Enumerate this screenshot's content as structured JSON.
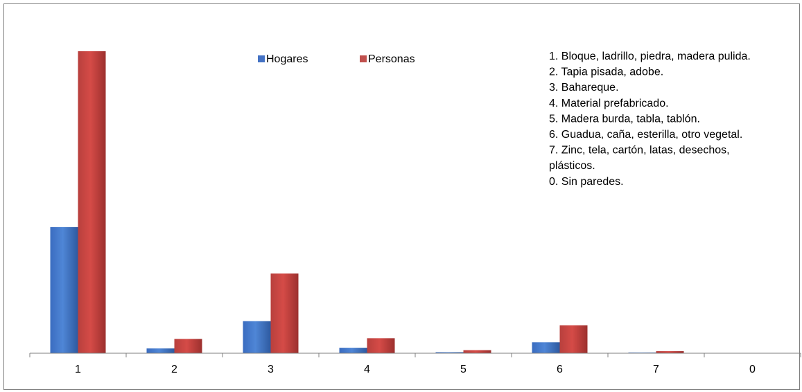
{
  "chart_data": {
    "type": "bar",
    "title": "",
    "xlabel": "",
    "ylabel": "",
    "categories": [
      "1",
      "2",
      "3",
      "4",
      "5",
      "6",
      "7",
      "0"
    ],
    "series": [
      {
        "name": "Hogares",
        "color": "#4472c4",
        "values": [
          185,
          7,
          47,
          8,
          1.5,
          16,
          1,
          0
        ]
      },
      {
        "name": "Personas",
        "color": "#c0504d",
        "values": [
          443,
          21,
          117,
          22,
          4.5,
          41,
          3,
          0
        ]
      }
    ],
    "ylim": [
      0,
      450
    ],
    "grid": false,
    "legend": "top-center",
    "notes": [
      "1. Bloque, ladrillo, piedra, madera pulida.",
      "2. Tapia pisada, adobe.",
      "3. Bahareque.",
      "4. Material prefabricado.",
      "5. Madera burda, tabla, tablón.",
      "6. Guadua, caña, esterilla, otro vegetal.",
      "7. Zinc, tela, cartón, latas, desechos,",
      "plásticos.",
      "0. Sin paredes."
    ]
  }
}
